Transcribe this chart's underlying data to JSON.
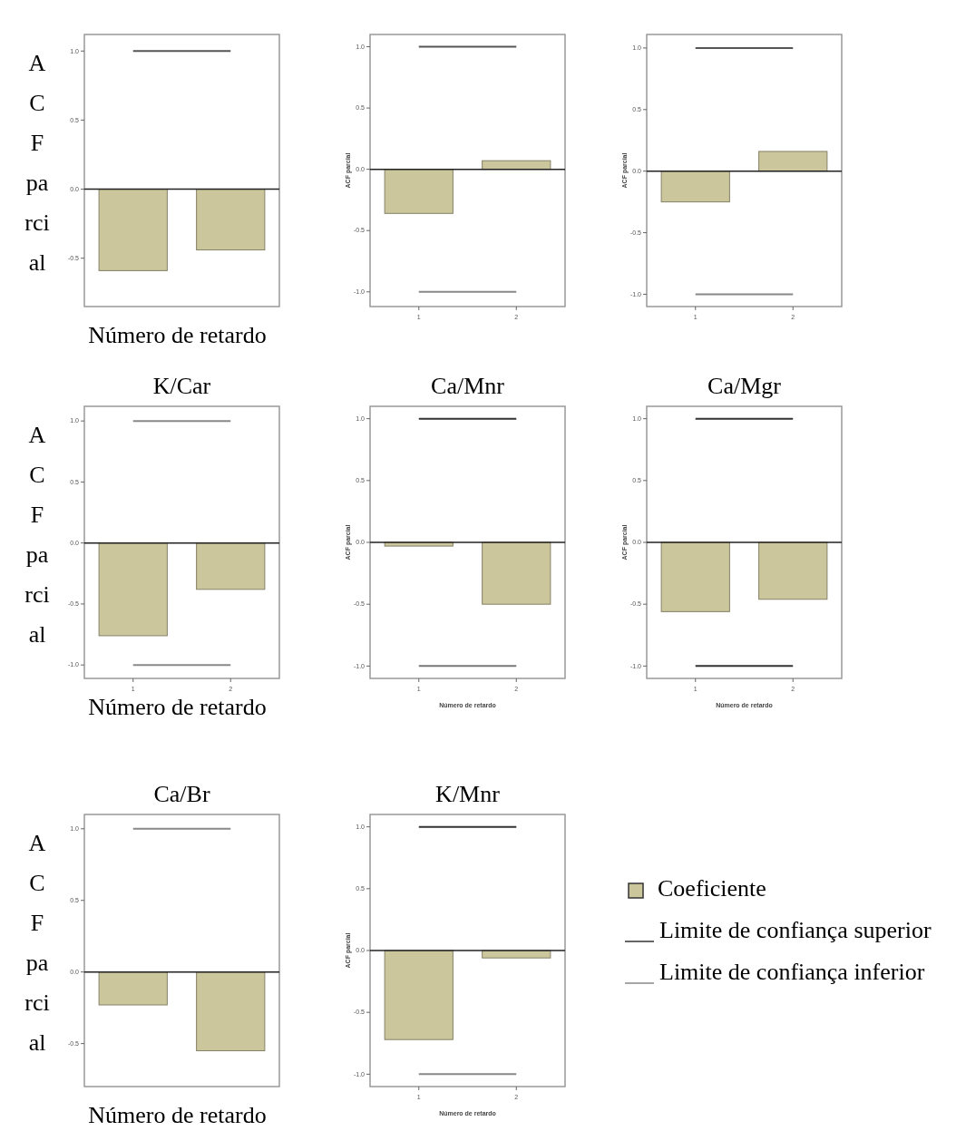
{
  "chart_data": [
    {
      "type": "bar",
      "xlabel": "Número de retardo",
      "ylabel": "ACF parcial",
      "categories": [
        null,
        null
      ],
      "series": [
        {
          "color": "#cbc69c",
          "values": [
            -0.59,
            -0.44
          ]
        }
      ],
      "ylim": [
        -0.85,
        1.12
      ],
      "yticks": [
        {
          "value": 1,
          "label": "1.0"
        },
        {
          "value": 0.5,
          "label": "0.5"
        },
        {
          "value": 0,
          "label": "0.0"
        },
        {
          "value": -0.5,
          "label": "-0.5"
        }
      ],
      "ref_lines": [
        {
          "axis": "y",
          "value": 1,
          "color": "#555555"
        }
      ]
    },
    {
      "type": "bar",
      "ylabel": "ACF parcial",
      "categories": [
        "1",
        "2"
      ],
      "series": [
        {
          "color": "#cbc69c",
          "values": [
            -0.36,
            0.07
          ]
        }
      ],
      "ylim": [
        -1.12,
        1.1
      ],
      "yticks": [
        {
          "value": 1,
          "label": "1.0"
        },
        {
          "value": 0.5,
          "label": "0.5"
        },
        {
          "value": 0,
          "label": "0.0"
        },
        {
          "value": -0.5,
          "label": "-0.5"
        },
        {
          "value": -1,
          "label": "-1.0"
        }
      ],
      "ref_lines": [
        {
          "axis": "y",
          "value": 1,
          "color": "#555555"
        },
        {
          "axis": "y",
          "value": -1,
          "color": "#888888"
        }
      ]
    },
    {
      "type": "bar",
      "ylabel": "ACF parcial",
      "categories": [
        "1",
        "2"
      ],
      "series": [
        {
          "color": "#cbc69c",
          "values": [
            -0.25,
            0.16
          ]
        }
      ],
      "ylim": [
        -1.1,
        1.11
      ],
      "yticks": [
        {
          "value": 1,
          "label": "1.0"
        },
        {
          "value": 0.5,
          "label": "0.5"
        },
        {
          "value": 0,
          "label": "0.0"
        },
        {
          "value": -0.5,
          "label": "-0.5"
        },
        {
          "value": -1,
          "label": "-1.0"
        }
      ],
      "ref_lines": [
        {
          "axis": "y",
          "value": 1,
          "color": "#555555"
        },
        {
          "axis": "y",
          "value": -1,
          "color": "#888888"
        }
      ]
    },
    {
      "type": "bar",
      "title": "K/Car",
      "xlabel": "Número de retardo",
      "ylabel": "ACF parcial",
      "categories": [
        "1",
        "2"
      ],
      "series": [
        {
          "color": "#cbc69c",
          "values": [
            -0.76,
            -0.38
          ]
        }
      ],
      "ylim": [
        -1.11,
        1.12
      ],
      "yticks": [
        {
          "value": 1,
          "label": "1.0"
        },
        {
          "value": 0.5,
          "label": "0.5"
        },
        {
          "value": 0,
          "label": "0.0"
        },
        {
          "value": -0.5,
          "label": "-0.5"
        },
        {
          "value": -1,
          "label": "-1.0"
        }
      ],
      "ref_lines": [
        {
          "axis": "y",
          "value": 1,
          "color": "#888888"
        },
        {
          "axis": "y",
          "value": -1,
          "color": "#888888"
        }
      ]
    },
    {
      "type": "bar",
      "title": "Ca/Mnr",
      "xlabel": "Número de retardo",
      "ylabel": "ACF parcial",
      "categories": [
        "1",
        "2"
      ],
      "series": [
        {
          "color": "#cbc69c",
          "values": [
            -0.03,
            -0.5
          ]
        }
      ],
      "ylim": [
        -1.1,
        1.1
      ],
      "yticks": [
        {
          "value": 1,
          "label": "1.0"
        },
        {
          "value": 0.5,
          "label": "0.5"
        },
        {
          "value": 0,
          "label": "0.0"
        },
        {
          "value": -0.5,
          "label": "-0.5"
        },
        {
          "value": -1,
          "label": "-1.0"
        }
      ],
      "ref_lines": [
        {
          "axis": "y",
          "value": 1,
          "color": "#333333"
        },
        {
          "axis": "y",
          "value": -1,
          "color": "#777777"
        }
      ]
    },
    {
      "type": "bar",
      "title": "Ca/Mgr",
      "xlabel": "Número de retardo",
      "ylabel": "ACF parcial",
      "categories": [
        "1",
        "2"
      ],
      "series": [
        {
          "color": "#cbc69c",
          "values": [
            -0.56,
            -0.46
          ]
        }
      ],
      "ylim": [
        -1.1,
        1.1
      ],
      "yticks": [
        {
          "value": 1,
          "label": "1.0"
        },
        {
          "value": 0.5,
          "label": "0.5"
        },
        {
          "value": 0,
          "label": "0.0"
        },
        {
          "value": -0.5,
          "label": "-0.5"
        },
        {
          "value": -1,
          "label": "-1.0"
        }
      ],
      "ref_lines": [
        {
          "axis": "y",
          "value": 1,
          "color": "#333333"
        },
        {
          "axis": "y",
          "value": -1,
          "color": "#333333"
        }
      ]
    },
    {
      "type": "bar",
      "title": "Ca/Br",
      "xlabel": "Número de retardo",
      "ylabel": "ACF parcial",
      "categories": [
        null,
        null
      ],
      "series": [
        {
          "color": "#cbc69c",
          "values": [
            -0.23,
            -0.55
          ]
        }
      ],
      "ylim": [
        -0.8,
        1.1
      ],
      "yticks": [
        {
          "value": 1,
          "label": "1.0"
        },
        {
          "value": 0.5,
          "label": "0.5"
        },
        {
          "value": 0,
          "label": "0.0"
        },
        {
          "value": -0.5,
          "label": "-0.5"
        }
      ],
      "ref_lines": [
        {
          "axis": "y",
          "value": 1,
          "color": "#888888"
        }
      ]
    },
    {
      "type": "bar",
      "title": "K/Mnr",
      "xlabel": "Número de retardo",
      "ylabel": "ACF parcial",
      "categories": [
        "1",
        "2"
      ],
      "series": [
        {
          "name": "Coeficiente",
          "color": "#cbc69c",
          "values": [
            -0.72,
            -0.06
          ]
        }
      ],
      "ylim": [
        -1.1,
        1.1
      ],
      "yticks": [
        {
          "value": 1,
          "label": "1.0"
        },
        {
          "value": 0.5,
          "label": "0.5"
        },
        {
          "value": 0,
          "label": "0.0"
        },
        {
          "value": -0.5,
          "label": "-0.5"
        },
        {
          "value": -1,
          "label": "-1.0"
        }
      ],
      "ref_lines": [
        {
          "axis": "y",
          "value": 1,
          "color": "#333333",
          "label": "Limite de confiança superior"
        },
        {
          "axis": "y",
          "value": -1,
          "color": "#888888",
          "label": "Limite de confiança inferior"
        }
      ],
      "legend": "right"
    }
  ]
}
